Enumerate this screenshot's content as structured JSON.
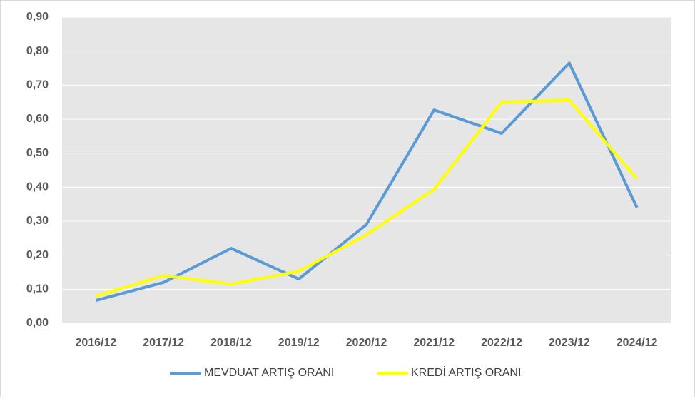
{
  "chart_data": {
    "type": "line",
    "categories": [
      "2016/12",
      "2017/12",
      "2018/12",
      "2019/12",
      "2020/12",
      "2021/12",
      "2022/12",
      "2023/12",
      "2024/12"
    ],
    "series": [
      {
        "name": "MEVDUAT ARTIŞ ORANI",
        "color": "#5b9bd5",
        "values": [
          0.067,
          0.12,
          0.22,
          0.13,
          0.29,
          0.627,
          0.558,
          0.765,
          0.34
        ]
      },
      {
        "name": "KREDİ ARTIŞ ORANI",
        "color": "#ffff00",
        "values": [
          0.08,
          0.14,
          0.115,
          0.153,
          0.26,
          0.394,
          0.65,
          0.656,
          0.425
        ]
      }
    ],
    "ylim": [
      0,
      0.9
    ],
    "yticks": [
      {
        "value": 0,
        "label": "0,00"
      },
      {
        "value": 0.1,
        "label": "0,10"
      },
      {
        "value": 0.2,
        "label": "0,20"
      },
      {
        "value": 0.3,
        "label": "0,30"
      },
      {
        "value": 0.4,
        "label": "0,40"
      },
      {
        "value": 0.5,
        "label": "0,50"
      },
      {
        "value": 0.6,
        "label": "0,60"
      },
      {
        "value": 0.7,
        "label": "0,70"
      },
      {
        "value": 0.8,
        "label": "0,80"
      },
      {
        "value": 0.9,
        "label": "0,90"
      }
    ],
    "grid": true,
    "legend": "bottom"
  }
}
